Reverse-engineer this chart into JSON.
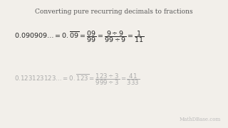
{
  "title": "Converting pure recurring decimals to fractions",
  "title_fontsize": 6.5,
  "title_color": "#555555",
  "bg_color": "#f2efea",
  "line1_color": "#222222",
  "line2_color": "#aaaaaa",
  "line1_eq": "$0.090909\\ldots = 0.\\overline{09} = \\dfrac{09}{99} = \\dfrac{9\\div9}{99\\div9} = \\dfrac{1}{11}$",
  "line2_eq": "$0.123123123\\ldots = 0.\\overline{123} = \\dfrac{123\\div3}{999\\div3} = \\dfrac{41}{333}$",
  "line1_fontsize": 6.8,
  "line2_fontsize": 6.2,
  "watermark": "MathDBase.com",
  "watermark_color": "#bbbbbb",
  "watermark_fontsize": 5.0
}
